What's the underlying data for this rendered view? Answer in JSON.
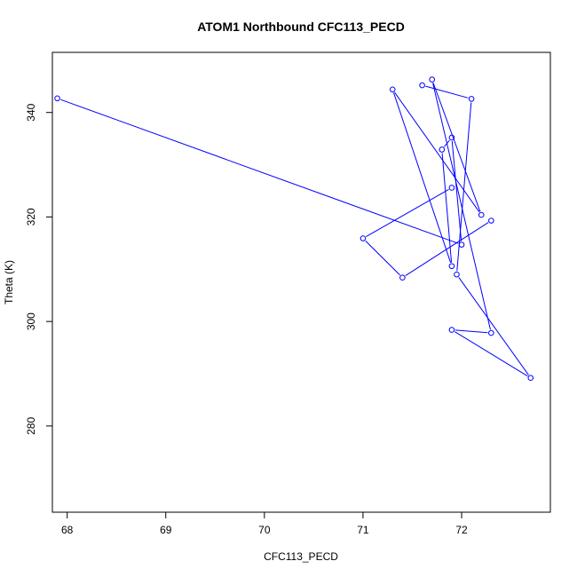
{
  "chart_data": {
    "type": "line",
    "title": "ATOM1 Northbound CFC113_PECD",
    "xlabel": "CFC113_PECD",
    "ylabel": "Theta (K)",
    "xlim": [
      67.85,
      72.9
    ],
    "ylim": [
      263.5,
      351.5
    ],
    "xticks": [
      68,
      69,
      70,
      71,
      72
    ],
    "yticks": [
      280,
      300,
      320,
      340
    ],
    "grid": false,
    "legend": "none",
    "line_color": "#0000ff",
    "marker": "open-circle",
    "series": [
      {
        "points": [
          {
            "x": 67.9,
            "y": 342.7
          },
          {
            "x": 72.0,
            "y": 314.7
          },
          {
            "x": 71.9,
            "y": 335.2
          },
          {
            "x": 71.8,
            "y": 332.9
          },
          {
            "x": 71.9,
            "y": 310.6
          },
          {
            "x": 71.3,
            "y": 344.4
          },
          {
            "x": 72.2,
            "y": 320.4
          },
          {
            "x": 71.7,
            "y": 346.3
          },
          {
            "x": 72.3,
            "y": 297.8
          },
          {
            "x": 71.9,
            "y": 298.4
          },
          {
            "x": 72.7,
            "y": 289.2
          },
          {
            "x": 71.95,
            "y": 309.0
          },
          {
            "x": 72.1,
            "y": 342.6
          },
          {
            "x": 71.6,
            "y": 345.2
          }
        ]
      },
      {
        "points": [
          {
            "x": 71.9,
            "y": 325.6
          },
          {
            "x": 71.0,
            "y": 315.9
          },
          {
            "x": 71.4,
            "y": 308.4
          },
          {
            "x": 72.3,
            "y": 319.3
          }
        ]
      }
    ]
  }
}
